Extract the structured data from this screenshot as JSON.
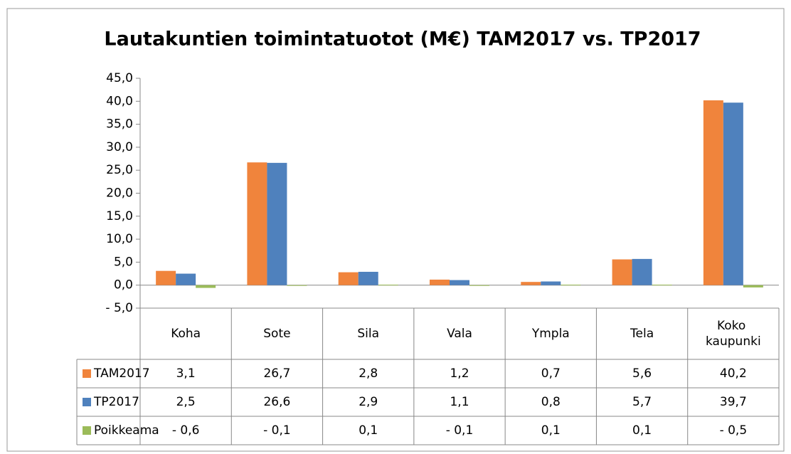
{
  "chart_data": {
    "type": "bar",
    "title": "Lautakuntien toimintatuotot (M€) TAM2017 vs. TP2017",
    "categories": [
      "Koha",
      "Sote",
      "Sila",
      "Vala",
      "Ympla",
      "Tela",
      "Koko kaupunki"
    ],
    "series": [
      {
        "name": "TAM2017",
        "color": "#f0843c",
        "values": [
          3.1,
          26.7,
          2.8,
          1.2,
          0.7,
          5.6,
          40.2
        ],
        "value_labels": [
          "3,1",
          "26,7",
          "2,8",
          "1,2",
          "0,7",
          "5,6",
          "40,2"
        ]
      },
      {
        "name": "TP2017",
        "color": "#4f81bd",
        "values": [
          2.5,
          26.6,
          2.9,
          1.1,
          0.8,
          5.7,
          39.7
        ],
        "value_labels": [
          "2,5",
          "26,6",
          "2,9",
          "1,1",
          "0,8",
          "5,7",
          "39,7"
        ]
      },
      {
        "name": "Poikkeama",
        "color": "#9bbb59",
        "values": [
          -0.6,
          -0.1,
          0.1,
          -0.1,
          0.1,
          0.1,
          -0.5
        ],
        "value_labels": [
          "- 0,6",
          "- 0,1",
          "0,1",
          "- 0,1",
          "0,1",
          "0,1",
          "- 0,5"
        ]
      }
    ],
    "ylim": [
      -5,
      45
    ],
    "yticks": [
      {
        "value": -5,
        "label": "- 5,0"
      },
      {
        "value": 0,
        "label": "0,0"
      },
      {
        "value": 5,
        "label": "5,0"
      },
      {
        "value": 10,
        "label": "10,0"
      },
      {
        "value": 15,
        "label": "15,0"
      },
      {
        "value": 20,
        "label": "20,0"
      },
      {
        "value": 25,
        "label": "25,0"
      },
      {
        "value": 30,
        "label": "30,0"
      },
      {
        "value": 35,
        "label": "35,0"
      },
      {
        "value": 40,
        "label": "40,0"
      },
      {
        "value": 45,
        "label": "45,0"
      }
    ],
    "grid": false
  }
}
